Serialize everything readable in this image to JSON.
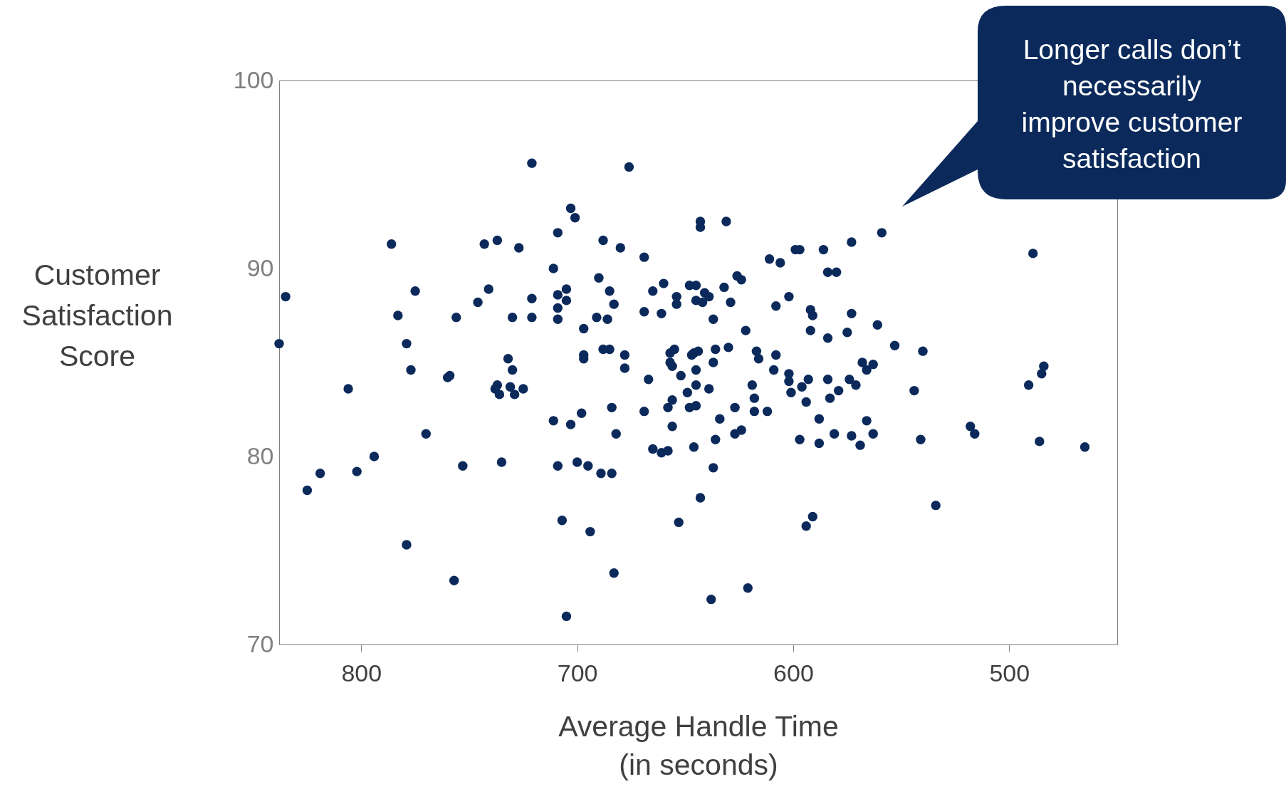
{
  "chart_data": {
    "type": "scatter",
    "xlabel": "Average Handle Time\n(in seconds)",
    "ylabel": "Customer Satisfaction Score",
    "annotations": [
      "Longer calls don’t necessarily improve customer satisfaction"
    ],
    "xlim": [
      838,
      450
    ],
    "xticks": [
      800,
      700,
      600,
      500
    ],
    "ylim": [
      70,
      100
    ],
    "yticks": [
      70,
      80,
      90,
      100
    ],
    "grid": false,
    "marker": "circle",
    "series": [
      {
        "color": "#0b2a5b",
        "x": [
          838,
          835,
          825,
          819,
          806,
          802,
          794,
          786,
          783,
          779,
          779,
          777,
          775,
          770,
          760,
          759,
          757,
          756,
          753,
          746,
          743,
          741,
          738,
          737,
          737,
          736,
          735,
          732,
          731,
          730,
          730,
          729,
          727,
          725,
          721,
          721,
          721,
          711,
          711,
          709,
          709,
          709,
          709,
          709,
          707,
          705,
          705,
          705,
          703,
          701,
          703,
          700,
          698,
          697,
          697,
          697,
          695,
          694,
          691,
          690,
          689,
          688,
          688,
          686,
          685,
          685,
          684,
          684,
          683,
          682,
          683,
          680,
          678,
          678,
          676,
          669,
          669,
          669,
          667,
          665,
          665,
          661,
          661,
          660,
          658,
          657,
          658,
          657,
          656,
          656,
          656,
          655,
          654,
          654,
          653,
          652,
          649,
          648,
          648,
          647,
          646,
          646,
          645,
          645,
          645,
          645,
          645,
          644,
          643,
          643,
          643,
          642,
          641,
          639,
          639,
          638,
          637,
          637,
          637,
          636,
          636,
          634,
          632,
          631,
          630,
          629,
          627,
          627,
          626,
          624,
          624,
          622,
          621,
          619,
          618,
          618,
          617,
          616,
          612,
          611,
          609,
          608,
          608,
          606,
          602,
          602,
          602,
          601,
          599,
          597,
          597,
          596,
          594,
          594,
          593,
          592,
          592,
          591,
          591,
          588,
          588,
          586,
          584,
          584,
          584,
          583,
          581,
          580,
          579,
          575,
          574,
          573,
          573,
          573,
          571,
          569,
          568,
          566,
          566,
          563,
          563,
          561,
          559,
          553,
          544,
          541,
          540,
          534,
          518,
          516,
          491,
          489,
          486,
          485,
          484,
          465
        ],
        "values": [
          86.0,
          88.5,
          78.2,
          79.1,
          83.6,
          79.2,
          80.0,
          91.3,
          87.5,
          86.0,
          75.3,
          84.6,
          88.8,
          81.2,
          84.2,
          84.3,
          73.4,
          87.4,
          79.5,
          88.2,
          91.3,
          88.9,
          83.6,
          91.5,
          83.8,
          83.3,
          79.7,
          85.2,
          83.7,
          84.6,
          87.4,
          83.3,
          91.1,
          83.6,
          88.4,
          95.6,
          87.4,
          81.9,
          90.0,
          91.9,
          88.6,
          87.9,
          87.3,
          79.5,
          76.6,
          88.9,
          88.3,
          71.5,
          93.2,
          92.7,
          81.7,
          79.7,
          82.3,
          86.8,
          85.4,
          85.2,
          79.5,
          76.0,
          87.4,
          89.5,
          79.1,
          91.5,
          85.7,
          87.3,
          88.8,
          85.7,
          79.1,
          82.6,
          88.1,
          81.2,
          73.8,
          91.1,
          84.7,
          85.4,
          95.4,
          90.6,
          87.7,
          82.4,
          84.1,
          88.8,
          80.4,
          87.6,
          80.2,
          89.2,
          80.3,
          85.0,
          82.6,
          85.5,
          84.8,
          83.0,
          81.6,
          85.7,
          88.5,
          88.1,
          76.5,
          84.3,
          83.4,
          89.1,
          82.6,
          85.4,
          80.5,
          85.5,
          89.1,
          88.3,
          83.8,
          82.7,
          84.6,
          85.6,
          92.5,
          92.2,
          77.8,
          88.2,
          88.7,
          88.5,
          83.6,
          72.4,
          87.3,
          85.0,
          79.4,
          80.9,
          85.7,
          82.0,
          89.0,
          92.5,
          85.8,
          88.2,
          82.6,
          81.2,
          89.6,
          81.4,
          89.4,
          86.7,
          73.0,
          83.8,
          83.1,
          82.4,
          85.6,
          85.2,
          82.4,
          90.5,
          84.6,
          85.4,
          88.0,
          90.3,
          84.4,
          88.5,
          84.0,
          83.4,
          91.0,
          91.0,
          80.9,
          83.7,
          76.3,
          82.9,
          84.1,
          87.8,
          86.7,
          87.5,
          76.8,
          82.0,
          80.7,
          91.0,
          86.3,
          89.8,
          84.1,
          83.1,
          81.2,
          89.8,
          83.5,
          86.6,
          84.1,
          91.4,
          87.6,
          81.1,
          83.8,
          80.6,
          85.0,
          84.6,
          81.9,
          84.9,
          81.2,
          87.0,
          91.9,
          85.9,
          83.5,
          80.9,
          85.6,
          77.4,
          81.6,
          81.2,
          83.8,
          90.8,
          80.8,
          84.4,
          84.8,
          80.5
        ]
      }
    ]
  }
}
